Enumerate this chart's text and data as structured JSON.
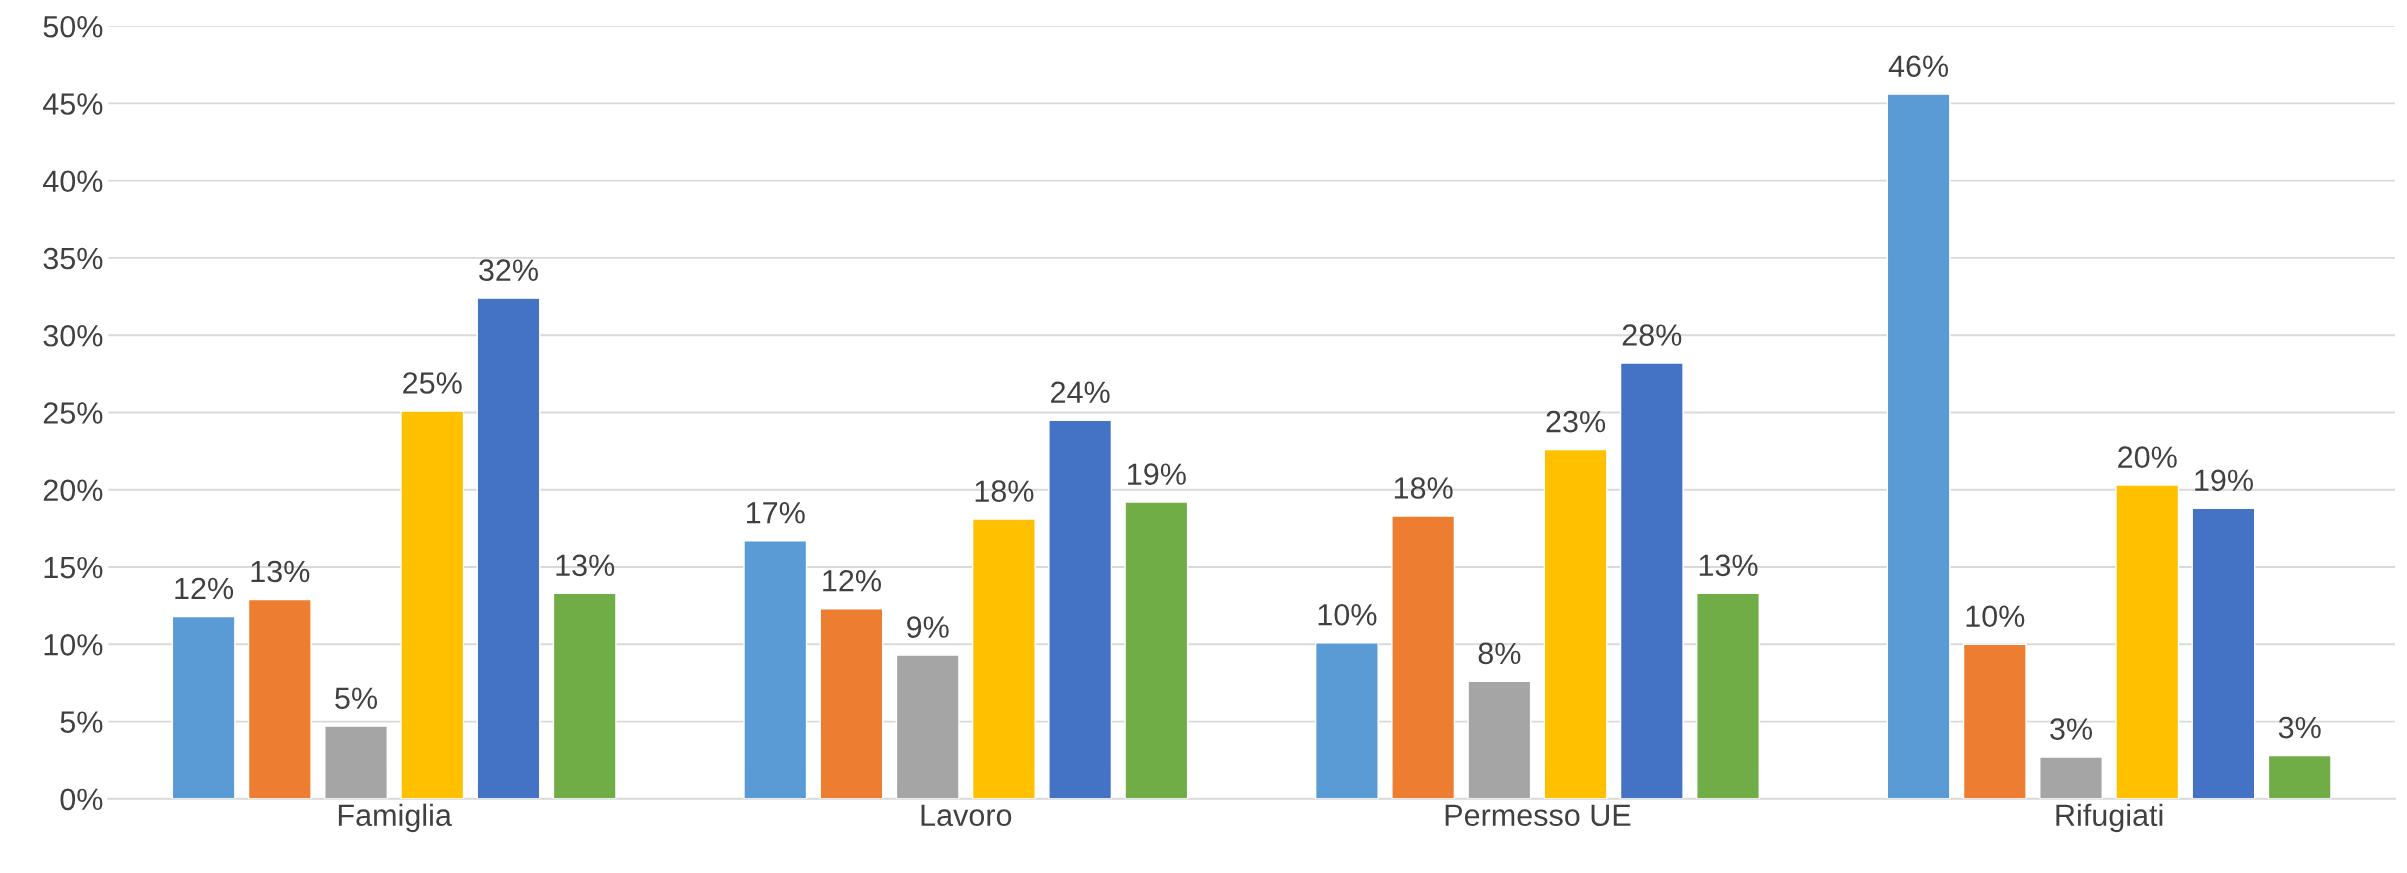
{
  "chart_data": {
    "type": "bar",
    "categories": [
      "Famiglia",
      "Lavoro",
      "Permesso UE",
      "Rifugiati"
    ],
    "series": [
      {
        "color": "#5b9bd5",
        "values": [
          11.8,
          16.7,
          10.1,
          45.6
        ],
        "value_labels": [
          "12%",
          "17%",
          "10%",
          "46%"
        ]
      },
      {
        "color": "#ed7d31",
        "values": [
          12.9,
          12.3,
          18.3,
          10.0
        ],
        "value_labels": [
          "13%",
          "12%",
          "18%",
          "10%"
        ]
      },
      {
        "color": "#a5a5a5",
        "values": [
          4.7,
          9.3,
          7.6,
          2.7
        ],
        "value_labels": [
          "5%",
          "9%",
          "8%",
          "3%"
        ]
      },
      {
        "color": "#ffc000",
        "values": [
          25.1,
          18.1,
          22.6,
          20.3
        ],
        "value_labels": [
          "25%",
          "18%",
          "23%",
          "20%"
        ]
      },
      {
        "color": "#4472c4",
        "values": [
          32.4,
          24.5,
          28.2,
          18.8
        ],
        "value_labels": [
          "32%",
          "24%",
          "28%",
          "19%"
        ]
      },
      {
        "color": "#70ad47",
        "values": [
          13.3,
          19.2,
          13.3,
          2.8
        ],
        "value_labels": [
          "13%",
          "19%",
          "13%",
          "3%"
        ]
      }
    ],
    "ylim": [
      0,
      50
    ],
    "yticks": [
      {
        "value": 0,
        "label": "0%"
      },
      {
        "value": 5,
        "label": "5%"
      },
      {
        "value": 10,
        "label": "10%"
      },
      {
        "value": 15,
        "label": "15%"
      },
      {
        "value": 20,
        "label": "20%"
      },
      {
        "value": 25,
        "label": "25%"
      },
      {
        "value": 30,
        "label": "30%"
      },
      {
        "value": 35,
        "label": "35%"
      },
      {
        "value": 40,
        "label": "40%"
      },
      {
        "value": 45,
        "label": "45%"
      },
      {
        "value": 50,
        "label": "50%"
      }
    ],
    "grid": "y"
  }
}
